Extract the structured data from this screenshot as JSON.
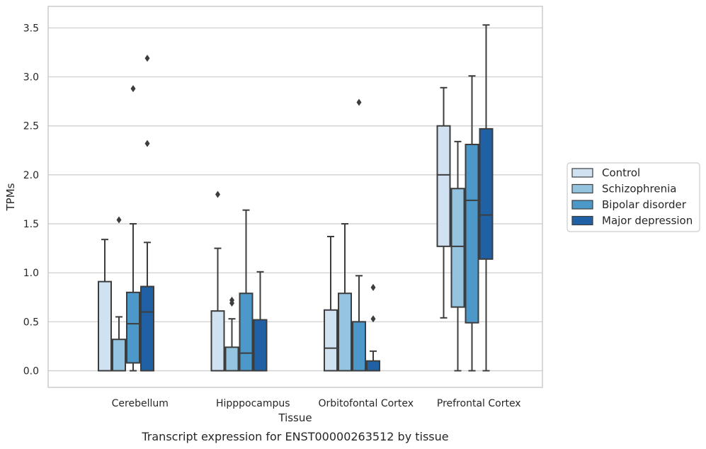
{
  "chart_data": {
    "type": "box",
    "caption": "Transcript expression for ENST00000263512 by tissue",
    "xlabel": "Tissue",
    "ylabel": "TPMs",
    "ylim": [
      -0.17,
      3.72
    ],
    "yticks": [
      "0.0",
      "0.5",
      "1.0",
      "1.5",
      "2.0",
      "2.5",
      "3.0",
      "3.5"
    ],
    "grid": true,
    "legend_position": "right",
    "categories": [
      "Cerebellum",
      "Hipppocampus",
      "Orbitofontal Cortex",
      "Prefrontal Cortex"
    ],
    "series": [
      {
        "name": "Control",
        "color": "#d0e1f2",
        "boxes": [
          {
            "whislo": 0.0,
            "q1": 0.0,
            "med": 0.0,
            "q3": 0.91,
            "whishi": 1.34,
            "fliers": []
          },
          {
            "whislo": 0.0,
            "q1": 0.0,
            "med": 0.0,
            "q3": 0.61,
            "whishi": 1.25,
            "fliers": [
              1.8
            ]
          },
          {
            "whislo": 0.0,
            "q1": 0.0,
            "med": 0.23,
            "q3": 0.62,
            "whishi": 1.37,
            "fliers": []
          },
          {
            "whislo": 0.54,
            "q1": 1.27,
            "med": 2.0,
            "q3": 2.5,
            "whishi": 2.89,
            "fliers": []
          }
        ]
      },
      {
        "name": "Schizophrenia",
        "color": "#94c4df",
        "boxes": [
          {
            "whislo": 0.0,
            "q1": 0.0,
            "med": 0.0,
            "q3": 0.32,
            "whishi": 0.55,
            "fliers": [
              1.54
            ]
          },
          {
            "whislo": 0.0,
            "q1": 0.0,
            "med": 0.0,
            "q3": 0.24,
            "whishi": 0.53,
            "fliers": [
              0.69,
              0.72
            ]
          },
          {
            "whislo": 0.0,
            "q1": 0.0,
            "med": 0.0,
            "q3": 0.79,
            "whishi": 1.5,
            "fliers": []
          },
          {
            "whislo": 0.0,
            "q1": 0.65,
            "med": 1.27,
            "q3": 1.86,
            "whishi": 2.34,
            "fliers": []
          }
        ]
      },
      {
        "name": "Bipolar disorder",
        "color": "#4b98c9",
        "boxes": [
          {
            "whislo": 0.0,
            "q1": 0.08,
            "med": 0.48,
            "q3": 0.8,
            "whishi": 1.5,
            "fliers": [
              2.88
            ]
          },
          {
            "whislo": 0.0,
            "q1": 0.0,
            "med": 0.18,
            "q3": 0.79,
            "whishi": 1.64,
            "fliers": []
          },
          {
            "whislo": 0.0,
            "q1": 0.0,
            "med": 0.0,
            "q3": 0.5,
            "whishi": 0.97,
            "fliers": [
              2.74
            ]
          },
          {
            "whislo": 0.0,
            "q1": 0.49,
            "med": 1.74,
            "q3": 2.31,
            "whishi": 3.01,
            "fliers": []
          }
        ]
      },
      {
        "name": "Major depression",
        "color": "#2060a5",
        "boxes": [
          {
            "whislo": 0.0,
            "q1": 0.0,
            "med": 0.6,
            "q3": 0.86,
            "whishi": 1.31,
            "fliers": [
              2.32,
              3.19
            ]
          },
          {
            "whislo": 0.0,
            "q1": 0.0,
            "med": 0.0,
            "q3": 0.52,
            "whishi": 1.01,
            "fliers": []
          },
          {
            "whislo": 0.0,
            "q1": 0.0,
            "med": 0.0,
            "q3": 0.1,
            "whishi": 0.2,
            "fliers": [
              0.53,
              0.85
            ]
          },
          {
            "whislo": 0.0,
            "q1": 1.14,
            "med": 1.59,
            "q3": 2.47,
            "whishi": 3.53,
            "fliers": []
          }
        ]
      }
    ]
  }
}
